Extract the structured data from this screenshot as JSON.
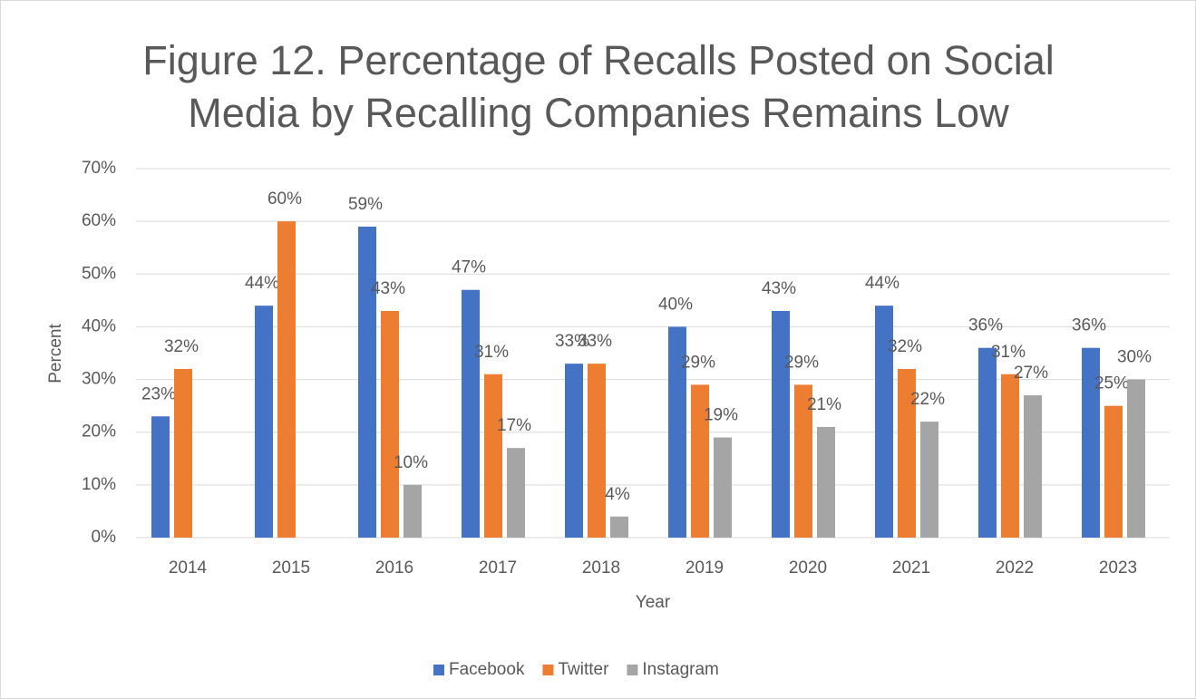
{
  "chart_data": {
    "type": "bar",
    "title": "Figure 12. Percentage of Recalls Posted on Social Media by Recalling Companies Remains Low",
    "x_label": "Year",
    "y_label": "Percent",
    "categories": [
      "2014",
      "2015",
      "2016",
      "2017",
      "2018",
      "2019",
      "2020",
      "2021",
      "2022",
      "2023"
    ],
    "series": [
      {
        "name": "Facebook",
        "color": "#4472c4",
        "values": [
          23,
          44,
          59,
          47,
          33,
          40,
          43,
          44,
          36,
          36
        ],
        "value_labels": [
          "23%",
          "44%",
          "59%",
          "47%",
          "33%",
          "40%",
          "43%",
          "44%",
          "36%",
          "36%"
        ]
      },
      {
        "name": "Twitter",
        "color": "#ed7d31",
        "values": [
          32,
          60,
          43,
          31,
          33,
          29,
          29,
          32,
          31,
          25
        ],
        "value_labels": [
          "32%",
          "60%",
          "43%",
          "31%",
          "33%",
          "29%",
          "29%",
          "32%",
          "31%",
          "25%"
        ]
      },
      {
        "name": "Instagram",
        "color": "#a5a5a5",
        "values": [
          null,
          null,
          10,
          17,
          4,
          19,
          21,
          22,
          27,
          30
        ],
        "value_labels": [
          null,
          null,
          "10%",
          "17%",
          "4%",
          "19%",
          "21%",
          "22%",
          "27%",
          "30%"
        ]
      }
    ],
    "ylim": [
      0,
      70
    ],
    "yticks": [
      {
        "value": 0,
        "label": "0%"
      },
      {
        "value": 10,
        "label": "10%"
      },
      {
        "value": 20,
        "label": "20%"
      },
      {
        "value": 30,
        "label": "30%"
      },
      {
        "value": 40,
        "label": "40%"
      },
      {
        "value": 50,
        "label": "50%"
      },
      {
        "value": 60,
        "label": "60%"
      },
      {
        "value": 70,
        "label": "70%"
      }
    ],
    "grid": true,
    "legend": "bottom"
  }
}
